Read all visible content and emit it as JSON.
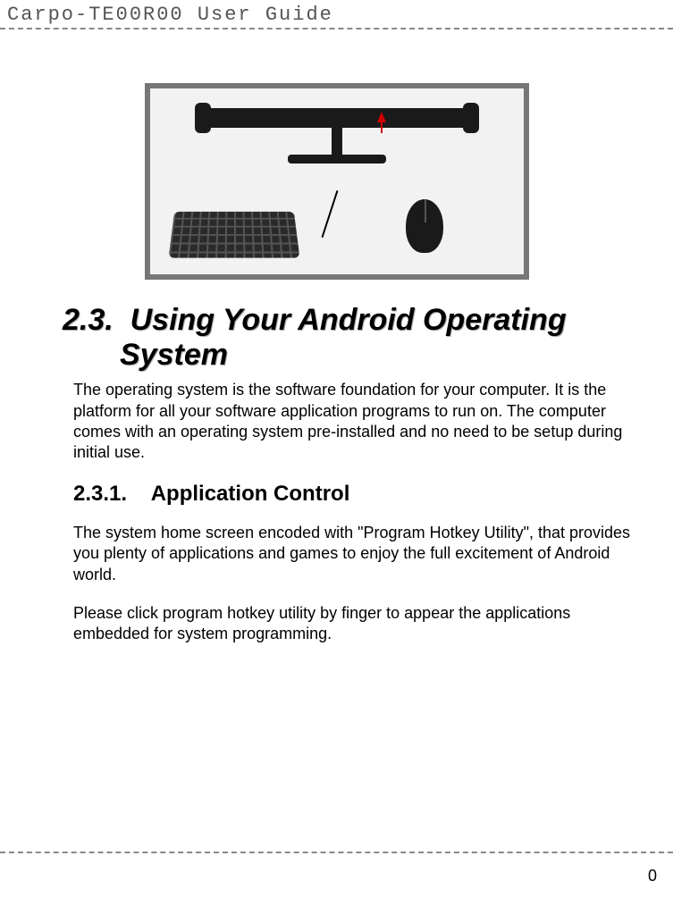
{
  "header": {
    "title": "Carpo-TE00R00 User Guide"
  },
  "section": {
    "number": "2.3.",
    "title": "Using Your Android Operating System",
    "intro": "The operating system is the software foundation for your computer. It is the platform for all your software application programs to run on. The computer comes with an operating system pre-installed and no need to be setup during initial use."
  },
  "subsection": {
    "number": "2.3.1.",
    "title": "Application Control",
    "p1": "The system home screen encoded with \"Program Hotkey Utility\", that provides you plenty of applications and games to enjoy the full excitement of Android world.",
    "p2": "Please click program hotkey utility by finger to appear the applications embedded for system programming."
  },
  "figure": {
    "description": "Illustration of monitor stand with keyboard and mouse",
    "border_color": "#777777",
    "background_color": "#f2f2f2",
    "arrow_color": "#d00000"
  },
  "footer": {
    "page_number": "0"
  },
  "styles": {
    "rule_color": "#888888",
    "heading_color": "#000000",
    "heading_shadow": "#aaaaaa",
    "header_text_color": "#555555",
    "body_color": "#000000",
    "background": "#ffffff",
    "header_font": "Courier New",
    "heading_fontsize_pt": 26,
    "subheading_fontsize_pt": 18,
    "body_fontsize_pt": 13
  }
}
